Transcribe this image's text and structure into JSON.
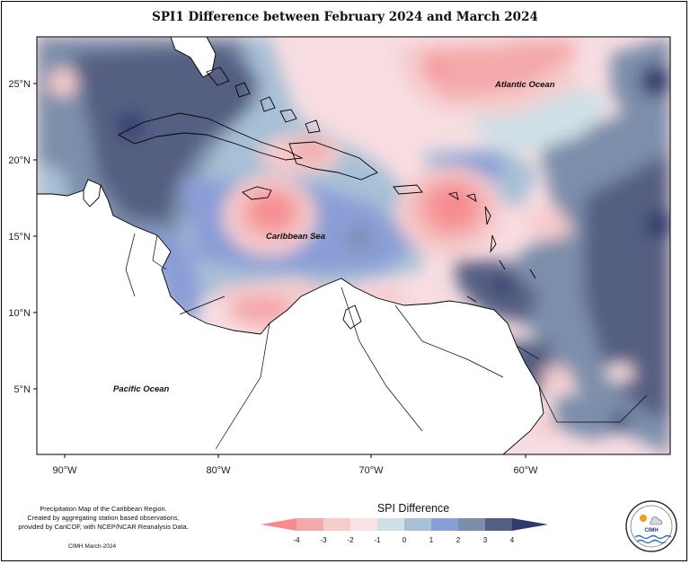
{
  "title": "SPI1 Difference between February 2024 and March 2024",
  "map": {
    "lon_labels": [
      "90°W",
      "80°W",
      "70°W",
      "60°W"
    ],
    "lat_labels": [
      "25°N",
      "20°N",
      "15°N",
      "10°N",
      "5°N"
    ],
    "regions": {
      "atlantic": "Atlantic Ocean",
      "caribbean": "Caribbean Sea",
      "pacific": "Pacific Ocean"
    }
  },
  "legend": {
    "title": "SPI Difference",
    "ticks": [
      "-4",
      "-3",
      "-2",
      "-1",
      "0",
      "1",
      "2",
      "3",
      "4"
    ],
    "colors": [
      "#f58b8f",
      "#f4a9aa",
      "#f6cccd",
      "#fbe2e6",
      "#cfe0e6",
      "#a7c0d6",
      "#8a9ed6",
      "#7b8eaa",
      "#545e82",
      "#303a6c"
    ]
  },
  "credits": {
    "line1": "Precipitation Map of the Caribbean Region.",
    "line2": "Created by aggregating station based observations,",
    "line3": "provided by CariCOF, with NCEP/NCAR Reanalysis Data.",
    "stamp": "CIMH March-2024"
  },
  "logo": {
    "label": "CIMH"
  }
}
